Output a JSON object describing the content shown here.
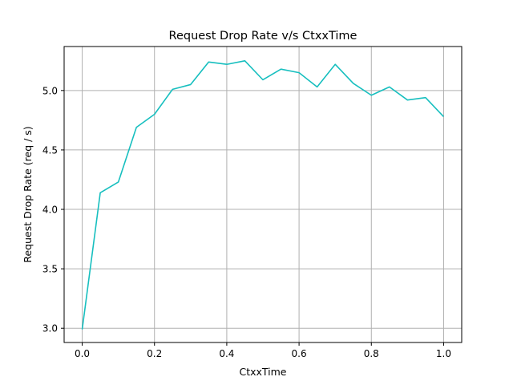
{
  "chart_data": {
    "type": "line",
    "title": "Request Drop Rate v/s CtxxTime",
    "xlabel": "CtxxTime",
    "ylabel": "Request Drop Rate (req / s)",
    "xlim": [
      -0.05,
      1.05
    ],
    "ylim": [
      2.88,
      5.37
    ],
    "xticks": [
      0.0,
      0.2,
      0.4,
      0.6,
      0.8,
      1.0
    ],
    "xtick_labels": [
      "0.0",
      "0.2",
      "0.4",
      "0.6",
      "0.8",
      "1.0"
    ],
    "yticks": [
      3.0,
      3.5,
      4.0,
      4.5,
      5.0
    ],
    "ytick_labels": [
      "3.0",
      "3.5",
      "4.0",
      "4.5",
      "5.0"
    ],
    "grid": true,
    "series": [
      {
        "color": "#17bfbf",
        "x": [
          0.0,
          0.05,
          0.1,
          0.15,
          0.2,
          0.25,
          0.3,
          0.35,
          0.4,
          0.45,
          0.5,
          0.55,
          0.6,
          0.65,
          0.7,
          0.75,
          0.8,
          0.85,
          0.9,
          0.95,
          1.0
        ],
        "y": [
          2.99,
          4.14,
          4.23,
          4.69,
          4.8,
          5.01,
          5.05,
          5.24,
          5.22,
          5.25,
          5.09,
          5.18,
          5.15,
          5.03,
          5.22,
          5.06,
          4.96,
          5.03,
          4.92,
          4.94,
          4.78
        ]
      }
    ]
  }
}
